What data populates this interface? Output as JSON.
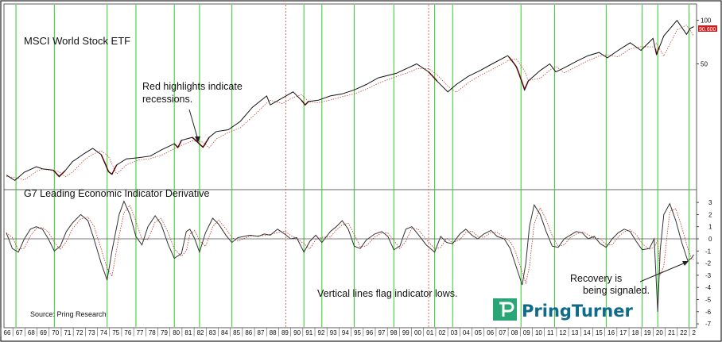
{
  "chart_data": {
    "type": "line",
    "top_panel": {
      "title": "MSCI World Stock ETF",
      "scale": "log",
      "y_ticks": [
        "100",
        "50"
      ],
      "last_value_label": "90.600",
      "annotation": "Red highlights indicate recessions.",
      "recessions": [
        [
          1969.9,
          1970.9
        ],
        [
          1973.9,
          1975.2
        ],
        [
          1980.0,
          1980.6
        ],
        [
          1981.5,
          1982.9
        ],
        [
          1990.6,
          1991.2
        ],
        [
          2001.2,
          2001.9
        ],
        [
          2007.9,
          2009.5
        ],
        [
          2020.1,
          2020.4
        ]
      ],
      "series": [
        {
          "name": "price",
          "points": [
            [
              1966.0,
              8.5
            ],
            [
              1966.7,
              7.8
            ],
            [
              1967.5,
              8.9
            ],
            [
              1968.5,
              9.7
            ],
            [
              1969.0,
              9.4
            ],
            [
              1969.9,
              9.2
            ],
            [
              1970.4,
              8.3
            ],
            [
              1970.9,
              9.1
            ],
            [
              1971.5,
              10.5
            ],
            [
              1972.5,
              12.0
            ],
            [
              1973.2,
              13.0
            ],
            [
              1973.9,
              11.8
            ],
            [
              1974.5,
              9.0
            ],
            [
              1974.8,
              8.6
            ],
            [
              1975.2,
              10.0
            ],
            [
              1976.0,
              11.0
            ],
            [
              1977.0,
              11.2
            ],
            [
              1978.0,
              11.5
            ],
            [
              1979.0,
              12.8
            ],
            [
              1980.0,
              14.0
            ],
            [
              1980.3,
              13.2
            ],
            [
              1980.6,
              14.8
            ],
            [
              1981.5,
              15.5
            ],
            [
              1982.4,
              13.2
            ],
            [
              1982.9,
              15.5
            ],
            [
              1983.5,
              17.0
            ],
            [
              1984.5,
              17.5
            ],
            [
              1985.5,
              20.0
            ],
            [
              1986.5,
              25.0
            ],
            [
              1987.7,
              30.0
            ],
            [
              1988.0,
              26.0
            ],
            [
              1989.0,
              29.0
            ],
            [
              1989.9,
              32.0
            ],
            [
              1990.6,
              28.0
            ],
            [
              1990.9,
              26.0
            ],
            [
              1991.2,
              27.5
            ],
            [
              1992.0,
              28.0
            ],
            [
              1993.0,
              30.0
            ],
            [
              1994.0,
              31.0
            ],
            [
              1995.0,
              33.0
            ],
            [
              1996.0,
              36.0
            ],
            [
              1997.0,
              40.0
            ],
            [
              1998.5,
              43.0
            ],
            [
              1999.5,
              47.0
            ],
            [
              2000.2,
              50.0
            ],
            [
              2001.2,
              44.0
            ],
            [
              2001.9,
              38.0
            ],
            [
              2002.8,
              32.0
            ],
            [
              2003.5,
              36.0
            ],
            [
              2004.5,
              41.0
            ],
            [
              2005.5,
              45.0
            ],
            [
              2006.5,
              50.0
            ],
            [
              2007.8,
              57.0
            ],
            [
              2008.5,
              48.0
            ],
            [
              2009.2,
              33.0
            ],
            [
              2009.5,
              38.0
            ],
            [
              2010.5,
              45.0
            ],
            [
              2011.3,
              50.0
            ],
            [
              2011.8,
              44.0
            ],
            [
              2012.5,
              47.0
            ],
            [
              2013.5,
              52.0
            ],
            [
              2014.5,
              57.0
            ],
            [
              2015.4,
              60.0
            ],
            [
              2016.1,
              55.0
            ],
            [
              2017.0,
              62.0
            ],
            [
              2018.0,
              70.0
            ],
            [
              2018.9,
              62.0
            ],
            [
              2019.9,
              75.0
            ],
            [
              2020.2,
              58.0
            ],
            [
              2020.8,
              78.0
            ],
            [
              2021.9,
              100.0
            ],
            [
              2022.7,
              80.0
            ],
            [
              2023.0,
              88.0
            ],
            [
              2023.3,
              90.6
            ]
          ]
        }
      ]
    },
    "bottom_panel": {
      "title": "G7 Leading Economic Indicator Derivative",
      "y_ticks": [
        "3",
        "2",
        "1",
        "0",
        "-1",
        "-2",
        "-3",
        "-4",
        "-5",
        "-6",
        "-7"
      ],
      "ylim": [
        -7,
        3.5
      ],
      "annotations": [
        "Recovery is being signaled.",
        "Vertical lines flag indicator lows."
      ],
      "series": [
        {
          "name": "indicator",
          "points": [
            [
              1966.0,
              0.5
            ],
            [
              1966.5,
              -0.8
            ],
            [
              1967.0,
              -1.1
            ],
            [
              1967.5,
              0.0
            ],
            [
              1968.0,
              0.8
            ],
            [
              1968.5,
              1.0
            ],
            [
              1969.0,
              0.8
            ],
            [
              1969.5,
              0.0
            ],
            [
              1970.0,
              -1.0
            ],
            [
              1970.5,
              -0.6
            ],
            [
              1971.0,
              0.6
            ],
            [
              1971.5,
              1.3
            ],
            [
              1972.2,
              2.0
            ],
            [
              1972.8,
              1.5
            ],
            [
              1973.3,
              0.0
            ],
            [
              1973.9,
              -2.0
            ],
            [
              1974.4,
              -3.4
            ],
            [
              1974.8,
              -1.0
            ],
            [
              1975.4,
              2.0
            ],
            [
              1975.8,
              3.1
            ],
            [
              1976.3,
              2.0
            ],
            [
              1976.8,
              0.2
            ],
            [
              1977.3,
              -0.5
            ],
            [
              1977.8,
              1.0
            ],
            [
              1978.4,
              1.9
            ],
            [
              1978.9,
              1.2
            ],
            [
              1979.5,
              -0.5
            ],
            [
              1980.0,
              -1.6
            ],
            [
              1980.6,
              -1.2
            ],
            [
              1981.0,
              0.6
            ],
            [
              1981.3,
              0.8
            ],
            [
              1981.7,
              0.0
            ],
            [
              1982.1,
              -1.1
            ],
            [
              1982.6,
              0.5
            ],
            [
              1983.2,
              1.7
            ],
            [
              1983.7,
              1.2
            ],
            [
              1984.3,
              0.3
            ],
            [
              1984.8,
              -0.3
            ],
            [
              1985.3,
              0.1
            ],
            [
              1986.3,
              0.3
            ],
            [
              1987.0,
              0.2
            ],
            [
              1987.5,
              0.4
            ],
            [
              1988.0,
              0.3
            ],
            [
              1988.6,
              0.8
            ],
            [
              1989.2,
              0.4
            ],
            [
              1989.7,
              0.0
            ],
            [
              1990.2,
              0.1
            ],
            [
              1990.8,
              -1.1
            ],
            [
              1991.3,
              -0.2
            ],
            [
              1991.8,
              0.3
            ],
            [
              1992.3,
              -0.3
            ],
            [
              1993.0,
              0.6
            ],
            [
              1993.5,
              1.0
            ],
            [
              1994.0,
              1.5
            ],
            [
              1994.5,
              0.8
            ],
            [
              1995.0,
              -0.6
            ],
            [
              1995.5,
              -0.8
            ],
            [
              1996.0,
              -0.1
            ],
            [
              1996.7,
              0.4
            ],
            [
              1997.3,
              0.6
            ],
            [
              1997.8,
              0.2
            ],
            [
              1998.3,
              -0.9
            ],
            [
              1998.8,
              -0.6
            ],
            [
              1999.3,
              0.8
            ],
            [
              1999.8,
              1.0
            ],
            [
              2000.3,
              0.4
            ],
            [
              2001.0,
              -0.5
            ],
            [
              2001.7,
              -1.1
            ],
            [
              2002.2,
              0.2
            ],
            [
              2002.7,
              -0.3
            ],
            [
              2003.2,
              -0.4
            ],
            [
              2003.8,
              0.4
            ],
            [
              2004.3,
              0.8
            ],
            [
              2004.8,
              0.3
            ],
            [
              2005.3,
              0.0
            ],
            [
              2005.8,
              0.4
            ],
            [
              2006.4,
              0.7
            ],
            [
              2006.9,
              0.2
            ],
            [
              2007.5,
              0.0
            ],
            [
              2008.0,
              -0.8
            ],
            [
              2008.4,
              -2.0
            ],
            [
              2009.0,
              -3.8
            ],
            [
              2009.3,
              -2.0
            ],
            [
              2009.6,
              1.0
            ],
            [
              2010.0,
              2.8
            ],
            [
              2010.5,
              2.0
            ],
            [
              2011.0,
              0.6
            ],
            [
              2011.5,
              -0.6
            ],
            [
              2012.0,
              -0.7
            ],
            [
              2012.5,
              0.0
            ],
            [
              2013.0,
              0.3
            ],
            [
              2013.5,
              0.6
            ],
            [
              2014.0,
              0.5
            ],
            [
              2014.5,
              0.0
            ],
            [
              2015.0,
              0.2
            ],
            [
              2015.5,
              -0.4
            ],
            [
              2016.0,
              -0.7
            ],
            [
              2016.5,
              0.0
            ],
            [
              2017.0,
              0.5
            ],
            [
              2017.5,
              0.8
            ],
            [
              2018.0,
              0.6
            ],
            [
              2018.5,
              -0.2
            ],
            [
              2019.0,
              -0.9
            ],
            [
              2019.6,
              -0.8
            ],
            [
              2020.0,
              0.0
            ],
            [
              2020.3,
              -6.0
            ],
            [
              2020.5,
              -1.0
            ],
            [
              2020.8,
              2.0
            ],
            [
              2021.3,
              2.9
            ],
            [
              2021.8,
              1.5
            ],
            [
              2022.3,
              -0.3
            ],
            [
              2022.8,
              -1.8
            ],
            [
              2023.1,
              -1.6
            ],
            [
              2023.3,
              -1.3
            ]
          ]
        }
      ]
    },
    "indicator_low_years": [
      1966.8,
      1970.0,
      1974.4,
      1976.8,
      1980.0,
      1982.1,
      1984.8,
      1990.8,
      1992.3,
      1995.0,
      1998.3,
      2001.7,
      2003.2,
      2008.9,
      2011.7,
      2016.0,
      2019.0,
      2020.3,
      2022.9
    ],
    "dotted_red_years": [
      1989.3,
      2001.2
    ],
    "x_ticks": [
      "66",
      "67",
      "68",
      "69",
      "70",
      "71",
      "72",
      "73",
      "74",
      "75",
      "76",
      "77",
      "78",
      "79",
      "80",
      "81",
      "82",
      "83",
      "84",
      "85",
      "86",
      "87",
      "88",
      "89",
      "90",
      "91",
      "92",
      "93",
      "94",
      "95",
      "96",
      "97",
      "98",
      "99",
      "00",
      "01",
      "02",
      "03",
      "04",
      "05",
      "06",
      "07",
      "08",
      "09",
      "10",
      "11",
      "12",
      "13",
      "14",
      "15",
      "16",
      "17",
      "18",
      "19",
      "20",
      "21",
      "22",
      "2"
    ],
    "source": "Source: Pring Research",
    "logo": {
      "text": "PringTurner",
      "color": "#0f6b8a",
      "accent": "#2aa676"
    },
    "colors": {
      "price": "#111111",
      "recession": "#e0201b",
      "signal": "#c0301e",
      "grid_green": "#3fcf3a",
      "zero_line": "#555555"
    }
  }
}
